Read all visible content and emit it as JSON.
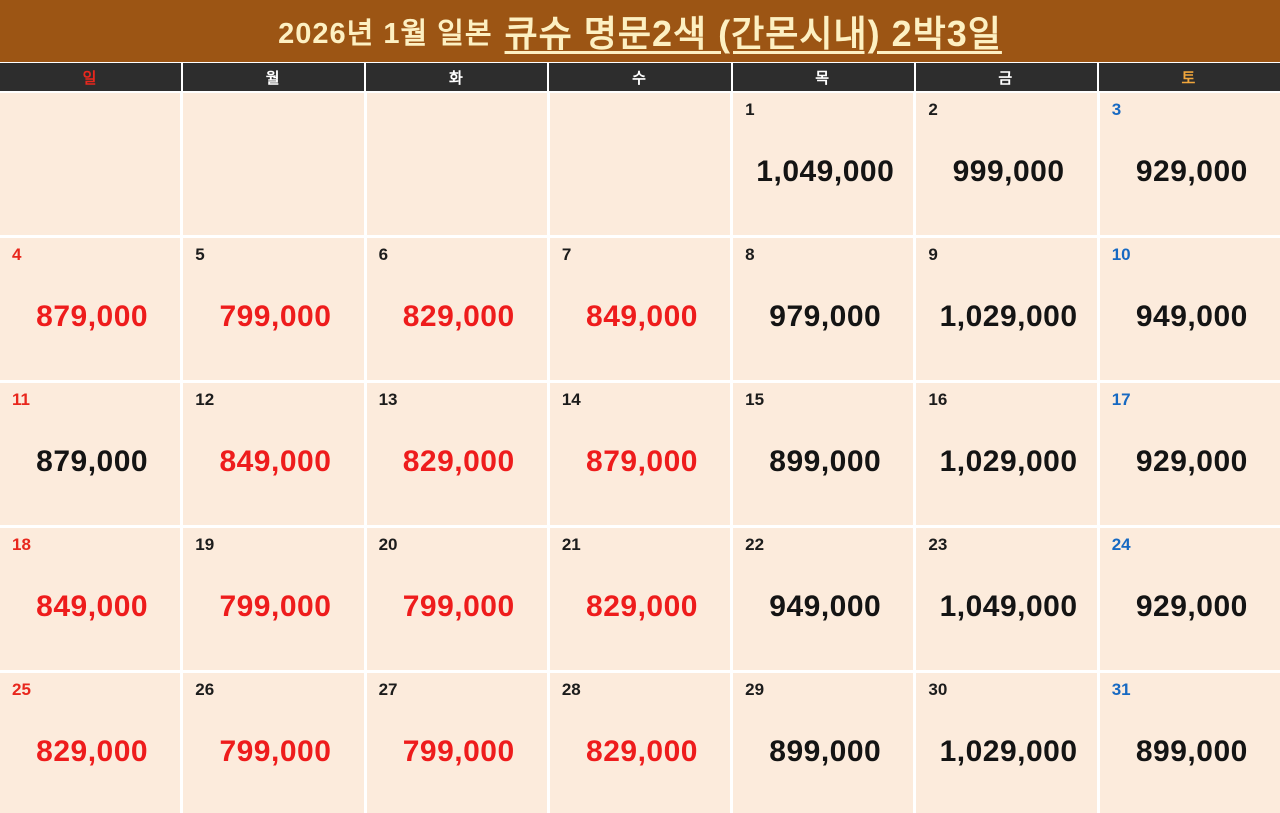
{
  "header": {
    "title_prefix": "2026년 1월 일본",
    "title_emphasis": "큐슈 명문2색 (간몬시내) 2박3일"
  },
  "weekday_row": {
    "labels": [
      "일",
      "월",
      "화",
      "수",
      "목",
      "금",
      "토"
    ]
  },
  "colors": {
    "title_bg": "#9c5514",
    "title_text": "#fdf0c2",
    "weekday_bg": "#2d2d2d",
    "weekday_text": "#ffffff",
    "sunday": "#e8271d",
    "saturday": "#1769c2",
    "saturday_header": "#f0a63c",
    "cell_bg": "#fcebdc",
    "price_red": "#ee1c1c",
    "price_black": "#141414"
  },
  "calendar": {
    "weeks": [
      [
        {
          "day": "",
          "price": "",
          "price_color": ""
        },
        {
          "day": "",
          "price": "",
          "price_color": ""
        },
        {
          "day": "",
          "price": "",
          "price_color": ""
        },
        {
          "day": "",
          "price": "",
          "price_color": ""
        },
        {
          "day": "1",
          "price": "1,049,000",
          "price_color": "black"
        },
        {
          "day": "2",
          "price": "999,000",
          "price_color": "black"
        },
        {
          "day": "3",
          "price": "929,000",
          "price_color": "black"
        }
      ],
      [
        {
          "day": "4",
          "price": "879,000",
          "price_color": "red"
        },
        {
          "day": "5",
          "price": "799,000",
          "price_color": "red"
        },
        {
          "day": "6",
          "price": "829,000",
          "price_color": "red"
        },
        {
          "day": "7",
          "price": "849,000",
          "price_color": "red"
        },
        {
          "day": "8",
          "price": "979,000",
          "price_color": "black"
        },
        {
          "day": "9",
          "price": "1,029,000",
          "price_color": "black"
        },
        {
          "day": "10",
          "price": "949,000",
          "price_color": "black"
        }
      ],
      [
        {
          "day": "11",
          "price": "879,000",
          "price_color": "black"
        },
        {
          "day": "12",
          "price": "849,000",
          "price_color": "red"
        },
        {
          "day": "13",
          "price": "829,000",
          "price_color": "red"
        },
        {
          "day": "14",
          "price": "879,000",
          "price_color": "red"
        },
        {
          "day": "15",
          "price": "899,000",
          "price_color": "black"
        },
        {
          "day": "16",
          "price": "1,029,000",
          "price_color": "black"
        },
        {
          "day": "17",
          "price": "929,000",
          "price_color": "black"
        }
      ],
      [
        {
          "day": "18",
          "price": "849,000",
          "price_color": "red"
        },
        {
          "day": "19",
          "price": "799,000",
          "price_color": "red"
        },
        {
          "day": "20",
          "price": "799,000",
          "price_color": "red"
        },
        {
          "day": "21",
          "price": "829,000",
          "price_color": "red"
        },
        {
          "day": "22",
          "price": "949,000",
          "price_color": "black"
        },
        {
          "day": "23",
          "price": "1,049,000",
          "price_color": "black"
        },
        {
          "day": "24",
          "price": "929,000",
          "price_color": "black"
        }
      ],
      [
        {
          "day": "25",
          "price": "829,000",
          "price_color": "red"
        },
        {
          "day": "26",
          "price": "799,000",
          "price_color": "red"
        },
        {
          "day": "27",
          "price": "799,000",
          "price_color": "red"
        },
        {
          "day": "28",
          "price": "829,000",
          "price_color": "red"
        },
        {
          "day": "29",
          "price": "899,000",
          "price_color": "black"
        },
        {
          "day": "30",
          "price": "1,029,000",
          "price_color": "black"
        },
        {
          "day": "31",
          "price": "899,000",
          "price_color": "black"
        }
      ]
    ]
  },
  "chart_data": {
    "type": "table",
    "title": "2026년 1월 일본 큐슈 명문2색 (간몬시내) 2박3일",
    "columns": [
      "일",
      "월",
      "화",
      "수",
      "목",
      "금",
      "토"
    ],
    "unit": "KRW",
    "prices_by_day": {
      "1": 1049000,
      "2": 999000,
      "3": 929000,
      "4": 879000,
      "5": 799000,
      "6": 829000,
      "7": 849000,
      "8": 979000,
      "9": 1029000,
      "10": 949000,
      "11": 879000,
      "12": 849000,
      "13": 829000,
      "14": 879000,
      "15": 899000,
      "16": 1029000,
      "17": 929000,
      "18": 849000,
      "19": 799000,
      "20": 799000,
      "21": 829000,
      "22": 949000,
      "23": 1049000,
      "24": 929000,
      "25": 829000,
      "26": 799000,
      "27": 799000,
      "28": 829000,
      "29": 899000,
      "30": 1029000,
      "31": 899000
    },
    "red_discount_days": [
      4,
      5,
      6,
      7,
      12,
      13,
      14,
      18,
      19,
      20,
      21,
      25,
      26,
      27,
      28
    ]
  }
}
